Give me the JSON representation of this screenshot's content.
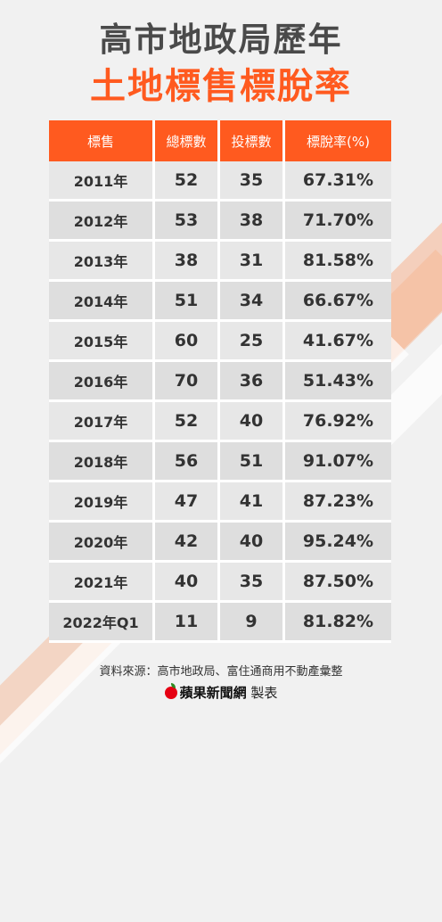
{
  "title": "高市地政局歷年",
  "subtitle": "土地標售標脫率",
  "table": {
    "headers": [
      "標售",
      "總標數",
      "投標數",
      "標脫率(%)"
    ],
    "rows": [
      [
        "2011年",
        "52",
        "35",
        "67.31%"
      ],
      [
        "2012年",
        "53",
        "38",
        "71.70%"
      ],
      [
        "2013年",
        "38",
        "31",
        "81.58%"
      ],
      [
        "2014年",
        "51",
        "34",
        "66.67%"
      ],
      [
        "2015年",
        "60",
        "25",
        "41.67%"
      ],
      [
        "2016年",
        "70",
        "36",
        "51.43%"
      ],
      [
        "2017年",
        "52",
        "40",
        "76.92%"
      ],
      [
        "2018年",
        "56",
        "51",
        "91.07%"
      ],
      [
        "2019年",
        "47",
        "41",
        "87.23%"
      ],
      [
        "2020年",
        "42",
        "40",
        "95.24%"
      ],
      [
        "2021年",
        "40",
        "35",
        "87.50%"
      ],
      [
        "2022年Q1",
        "11",
        "9",
        "81.82%"
      ]
    ]
  },
  "footer": {
    "source": "資料來源：高市地政局、富住通商用不動產彙整",
    "brand": "蘋果新聞網",
    "made_by": "製表"
  },
  "colors": {
    "accent": "#ff5a1f",
    "title": "#4a4a4a",
    "background": "#f1f1f1"
  }
}
